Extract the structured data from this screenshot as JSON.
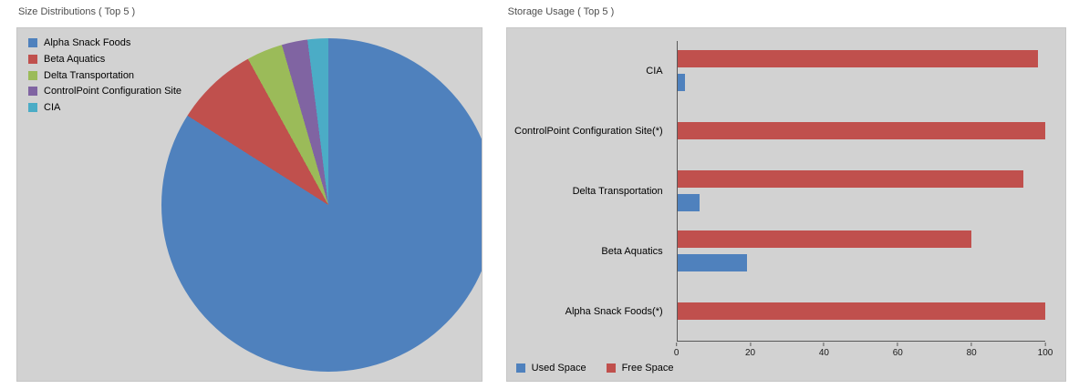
{
  "chart_data": [
    {
      "type": "pie",
      "title": "Size Distributions ( Top 5 )",
      "labels": [
        "Alpha Snack Foods",
        "Beta Aquatics",
        "Delta Transportation",
        "ControlPoint Configuration Site",
        "CIA"
      ],
      "values": [
        84,
        8,
        3.5,
        2.5,
        2
      ],
      "colors": [
        "#4F81BD",
        "#C0504D",
        "#9BBB59",
        "#8064A2",
        "#4BACC6"
      ],
      "legend_position": "top-left",
      "start_angle": "12-o'clock, clockwise"
    },
    {
      "type": "bar",
      "orientation": "horizontal",
      "title": "Storage Usage ( Top 5 )",
      "categories": [
        "CIA",
        "ControlPoint Configuration Site(*)",
        "Delta Transportation",
        "Beta Aquatics",
        "Alpha Snack Foods(*)"
      ],
      "series": [
        {
          "name": "Used Space",
          "color": "#4F81BD",
          "values": [
            2,
            0,
            6,
            19,
            0
          ]
        },
        {
          "name": "Free Space",
          "color": "#C0504D",
          "values": [
            98,
            100,
            94,
            80,
            100
          ]
        }
      ],
      "xlim": [
        0,
        100
      ],
      "xticks": [
        0,
        20,
        40,
        60,
        80,
        100
      ],
      "legend_position": "bottom-left",
      "grid": false
    }
  ]
}
